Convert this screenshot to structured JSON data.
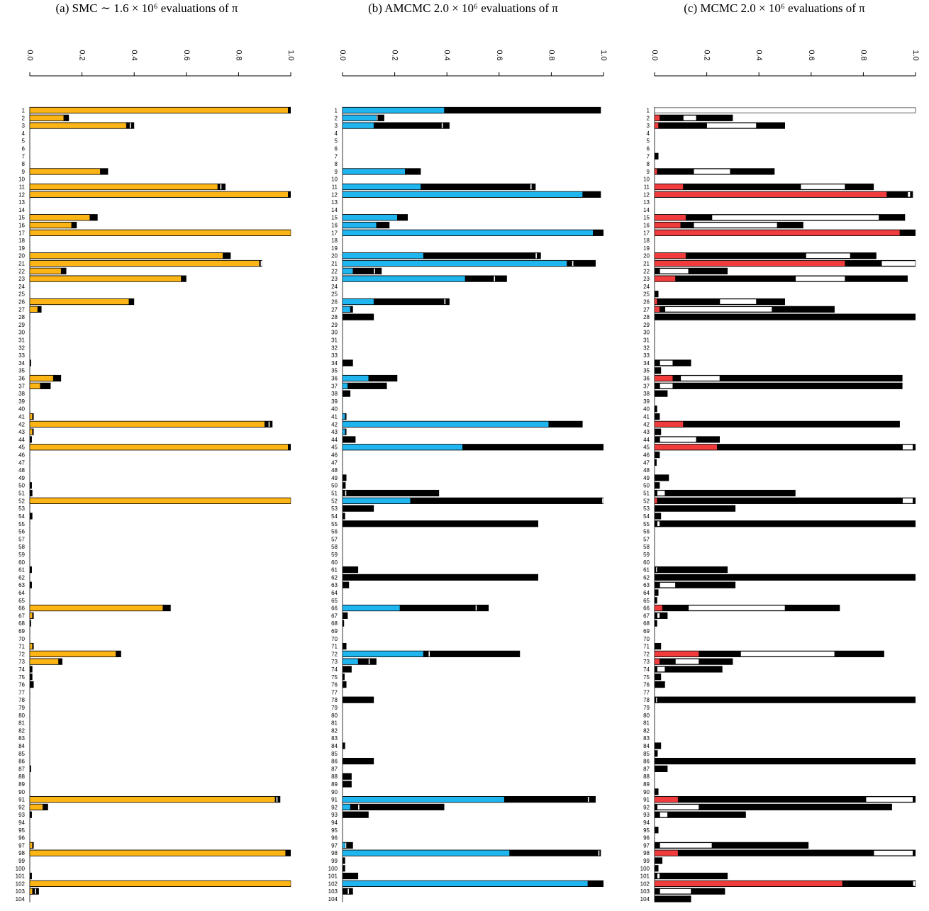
{
  "chart_data": [
    {
      "type": "bar",
      "title": "(a) SMC ∼ 1.6 × 10⁶ evaluations of π",
      "orientation": "horizontal",
      "xlim": [
        0,
        1
      ],
      "ticks": [
        "0.0",
        "0.2",
        "0.4",
        "0.6",
        "0.8",
        "1.0"
      ],
      "rows": [
        1,
        2,
        3,
        4,
        5,
        6,
        7,
        8,
        9,
        10,
        11,
        12,
        13,
        14,
        15,
        16,
        17,
        18,
        19,
        20,
        21,
        22,
        23,
        24,
        25,
        26,
        27,
        28,
        29,
        30,
        31,
        32,
        33,
        34,
        35,
        36,
        37,
        38,
        39,
        40,
        41,
        42,
        43,
        44,
        45,
        46,
        47,
        48,
        49,
        50,
        51,
        52,
        53,
        54,
        55,
        56,
        57,
        58,
        59,
        60,
        61,
        62,
        63,
        64,
        65,
        66,
        67,
        68,
        69,
        70,
        71,
        72,
        73,
        74,
        75,
        76,
        77,
        78,
        79,
        80,
        81,
        82,
        83,
        84,
        85,
        86,
        87,
        88,
        89,
        90,
        91,
        92,
        93,
        94,
        95,
        96,
        97,
        98,
        99,
        100,
        101,
        102,
        103,
        104
      ],
      "fill_color": "#FDB515",
      "fill_ids": [
        1,
        2,
        3,
        9,
        11,
        12,
        15,
        16,
        17,
        20,
        21,
        22,
        23,
        26,
        27,
        36,
        37,
        41,
        42,
        43,
        45,
        52,
        66,
        67,
        71,
        72,
        73,
        91,
        92,
        97,
        98,
        102,
        103
      ],
      "fill_vals": [
        0.99,
        0.13,
        0.37,
        0.27,
        0.72,
        0.99,
        0.23,
        0.16,
        1.0,
        0.74,
        0.88,
        0.12,
        0.58,
        0.38,
        0.03,
        0.09,
        0.04,
        0.01,
        0.9,
        0.01,
        0.99,
        1.0,
        0.51,
        0.01,
        0.01,
        0.33,
        0.11,
        0.94,
        0.05,
        0.01,
        0.98,
        1.0,
        0.01
      ],
      "total_ids": [
        1,
        2,
        3,
        9,
        11,
        12,
        15,
        16,
        17,
        20,
        21,
        22,
        23,
        26,
        27,
        34,
        36,
        37,
        41,
        42,
        43,
        44,
        45,
        50,
        51,
        52,
        54,
        61,
        63,
        66,
        67,
        68,
        71,
        72,
        73,
        74,
        75,
        76,
        87,
        91,
        92,
        93,
        97,
        98,
        101,
        102,
        103
      ],
      "total_vals": [
        1.0,
        0.15,
        0.4,
        0.3,
        0.75,
        1.0,
        0.26,
        0.18,
        1.0,
        0.77,
        0.89,
        0.14,
        0.6,
        0.4,
        0.045,
        0.005,
        0.12,
        0.08,
        0.015,
        0.93,
        0.015,
        0.008,
        1.0,
        0.008,
        0.01,
        1.0,
        0.01,
        0.008,
        0.008,
        0.54,
        0.015,
        0.005,
        0.015,
        0.35,
        0.125,
        0.01,
        0.01,
        0.015,
        0.005,
        0.96,
        0.07,
        0.008,
        0.015,
        1.0,
        0.008,
        1.0,
        0.035
      ],
      "white_ids": [
        3,
        11,
        17,
        21,
        42,
        91,
        103
      ],
      "white_vals": [
        0.383,
        0.73,
        0.999,
        0.885,
        0.915,
        0.945,
        0.02
      ]
    },
    {
      "type": "bar",
      "title": "(b) AMCMC 2.0 × 10⁶ evaluations of π",
      "orientation": "horizontal",
      "xlim": [
        0,
        1
      ],
      "ticks": [
        "0.0",
        "0.2",
        "0.4",
        "0.6",
        "0.8",
        "1.0"
      ],
      "rows": [
        1,
        2,
        3,
        4,
        5,
        6,
        7,
        8,
        9,
        10,
        11,
        12,
        13,
        14,
        15,
        16,
        17,
        18,
        19,
        20,
        21,
        22,
        23,
        24,
        25,
        26,
        27,
        28,
        29,
        30,
        31,
        32,
        33,
        34,
        35,
        36,
        37,
        38,
        39,
        40,
        41,
        42,
        43,
        44,
        45,
        46,
        47,
        48,
        49,
        50,
        51,
        52,
        53,
        54,
        55,
        56,
        57,
        58,
        59,
        60,
        61,
        62,
        63,
        64,
        65,
        66,
        67,
        68,
        69,
        70,
        71,
        72,
        73,
        74,
        75,
        76,
        77,
        78,
        79,
        80,
        81,
        82,
        83,
        84,
        85,
        86,
        87,
        88,
        89,
        90,
        91,
        92,
        93,
        94,
        95,
        96,
        97,
        98,
        99,
        100,
        101,
        102,
        103,
        104
      ],
      "fill_color": "#1FB6F0",
      "fill_ids": [
        1,
        2,
        3,
        9,
        11,
        12,
        15,
        16,
        17,
        20,
        21,
        22,
        23,
        26,
        27,
        36,
        37,
        41,
        42,
        43,
        45,
        52,
        66,
        72,
        73,
        91,
        92,
        97,
        98,
        102
      ],
      "fill_vals": [
        0.39,
        0.13,
        0.12,
        0.24,
        0.3,
        0.92,
        0.21,
        0.13,
        0.96,
        0.31,
        0.86,
        0.04,
        0.47,
        0.12,
        0.03,
        0.1,
        0.02,
        0.01,
        0.79,
        0.01,
        0.46,
        0.26,
        0.22,
        0.31,
        0.06,
        0.62,
        0.03,
        0.01,
        0.64,
        0.94
      ],
      "total_ids": [
        1,
        2,
        3,
        9,
        11,
        12,
        15,
        16,
        17,
        20,
        21,
        22,
        23,
        26,
        27,
        28,
        34,
        36,
        37,
        38,
        41,
        42,
        43,
        44,
        45,
        49,
        50,
        51,
        52,
        53,
        54,
        55,
        61,
        62,
        63,
        66,
        67,
        68,
        71,
        72,
        73,
        74,
        75,
        76,
        78,
        84,
        86,
        88,
        89,
        91,
        92,
        93,
        97,
        98,
        99,
        100,
        101,
        102,
        103
      ],
      "total_vals": [
        0.99,
        0.16,
        0.41,
        0.3,
        0.74,
        0.99,
        0.25,
        0.18,
        1.0,
        0.76,
        0.97,
        0.15,
        0.63,
        0.41,
        0.04,
        0.12,
        0.04,
        0.21,
        0.17,
        0.03,
        0.015,
        0.92,
        0.015,
        0.05,
        1.0,
        0.015,
        0.012,
        0.37,
        1.0,
        0.12,
        0.01,
        0.75,
        0.06,
        0.75,
        0.025,
        0.56,
        0.02,
        0.006,
        0.015,
        0.68,
        0.13,
        0.035,
        0.008,
        0.015,
        0.12,
        0.01,
        0.12,
        0.035,
        0.035,
        0.97,
        0.39,
        0.1,
        0.04,
        0.99,
        0.01,
        0.01,
        0.06,
        1.0,
        0.04
      ],
      "white_ids": [
        2,
        3,
        11,
        20,
        21,
        22,
        23,
        26,
        51,
        52,
        66,
        72,
        73,
        91,
        92,
        97,
        98,
        103
      ],
      "white_vals": [
        0.13,
        0.38,
        0.72,
        0.74,
        0.88,
        0.12,
        0.58,
        0.39,
        0.01,
        0.995,
        0.51,
        0.33,
        0.1,
        0.94,
        0.06,
        0.01,
        0.98,
        0.02
      ]
    },
    {
      "type": "bar",
      "title": "(c) MCMC 2.0 × 10⁶ evaluations of π",
      "orientation": "horizontal",
      "xlim": [
        0,
        1
      ],
      "ticks": [
        "0.0",
        "0.2",
        "0.4",
        "0.6",
        "0.8",
        "1.0"
      ],
      "rows": [
        1,
        2,
        3,
        4,
        5,
        6,
        7,
        8,
        9,
        10,
        11,
        12,
        13,
        14,
        15,
        16,
        17,
        18,
        19,
        20,
        21,
        22,
        23,
        24,
        25,
        26,
        27,
        28,
        29,
        30,
        31,
        32,
        33,
        34,
        35,
        36,
        37,
        38,
        39,
        40,
        41,
        42,
        43,
        44,
        45,
        46,
        47,
        48,
        49,
        50,
        51,
        52,
        53,
        54,
        55,
        56,
        57,
        58,
        59,
        60,
        61,
        62,
        63,
        64,
        65,
        66,
        67,
        68,
        69,
        70,
        71,
        72,
        73,
        74,
        75,
        76,
        77,
        78,
        79,
        80,
        81,
        82,
        83,
        84,
        85,
        86,
        87,
        88,
        89,
        90,
        91,
        92,
        93,
        94,
        95,
        96,
        97,
        98,
        99,
        100,
        101,
        102,
        103,
        104
      ],
      "fill_color": "#F03C3C",
      "fill_ids": [
        2,
        3,
        9,
        11,
        12,
        15,
        16,
        17,
        20,
        21,
        23,
        26,
        27,
        36,
        42,
        45,
        52,
        66,
        72,
        73,
        91,
        98,
        102
      ],
      "fill_vals": [
        0.02,
        0.015,
        0.01,
        0.11,
        0.89,
        0.12,
        0.1,
        0.94,
        0.12,
        0.73,
        0.08,
        0.01,
        0.02,
        0.07,
        0.11,
        0.24,
        0.01,
        0.03,
        0.17,
        0.02,
        0.09,
        0.09,
        0.72
      ],
      "total_ids": [
        2,
        3,
        7,
        9,
        11,
        12,
        15,
        16,
        17,
        20,
        21,
        22,
        23,
        25,
        26,
        27,
        28,
        34,
        35,
        36,
        37,
        38,
        40,
        41,
        42,
        43,
        44,
        45,
        46,
        47,
        49,
        50,
        51,
        52,
        53,
        54,
        55,
        61,
        62,
        63,
        64,
        65,
        66,
        67,
        68,
        71,
        72,
        73,
        74,
        75,
        76,
        78,
        84,
        85,
        86,
        87,
        90,
        91,
        92,
        93,
        95,
        97,
        98,
        99,
        100,
        101,
        102,
        103,
        104
      ],
      "total_vals": [
        0.3,
        0.5,
        0.015,
        0.46,
        0.84,
        0.99,
        0.96,
        0.57,
        1.0,
        0.85,
        1.0,
        0.28,
        0.97,
        0.015,
        0.5,
        0.69,
        1.0,
        0.14,
        0.025,
        0.95,
        0.95,
        0.05,
        0.01,
        0.02,
        0.94,
        0.025,
        0.25,
        1.0,
        0.02,
        0.008,
        0.055,
        0.02,
        0.54,
        1.0,
        0.31,
        0.025,
        1.0,
        0.28,
        1.0,
        0.31,
        0.015,
        0.01,
        0.71,
        0.05,
        0.01,
        0.025,
        0.88,
        0.3,
        0.26,
        0.025,
        0.04,
        1.0,
        0.025,
        0.012,
        1.0,
        0.05,
        0.015,
        1.0,
        0.91,
        0.35,
        0.015,
        0.59,
        1.0,
        0.03,
        0.015,
        0.28,
        1.0,
        0.27,
        0.14
      ],
      "white_ids": [
        1,
        2,
        3,
        9,
        11,
        12,
        15,
        16,
        20,
        21,
        22,
        23,
        26,
        27,
        34,
        36,
        37,
        44,
        45,
        51,
        52,
        55,
        61,
        63,
        66,
        67,
        72,
        73,
        74,
        78,
        91,
        92,
        93,
        97,
        98,
        101,
        102,
        103
      ],
      "white_ranges": [
        [
          0,
          1.0
        ],
        [
          0.11,
          0.16
        ],
        [
          0.2,
          0.39
        ],
        [
          0.15,
          0.29
        ],
        [
          0.56,
          0.73
        ],
        [
          0.97,
          0.98
        ],
        [
          0.22,
          0.86
        ],
        [
          0.15,
          0.47
        ],
        [
          0.58,
          0.75
        ],
        [
          0.87,
          1.0
        ],
        [
          0.02,
          0.13
        ],
        [
          0.54,
          0.73
        ],
        [
          0.25,
          0.39
        ],
        [
          0.04,
          0.45
        ],
        [
          0.02,
          0.07
        ],
        [
          0.1,
          0.25
        ],
        [
          0.02,
          0.07
        ],
        [
          0.02,
          0.16
        ],
        [
          0.95,
          0.99
        ],
        [
          0.01,
          0.04
        ],
        [
          0.95,
          0.99
        ],
        [
          0.01,
          0.02
        ],
        [
          0.005,
          0.01
        ],
        [
          0.02,
          0.08
        ],
        [
          0.13,
          0.5
        ],
        [
          0.01,
          0.02
        ],
        [
          0.33,
          0.69
        ],
        [
          0.08,
          0.17
        ],
        [
          0.01,
          0.04
        ],
        [
          0.005,
          0.01
        ],
        [
          0.81,
          0.99
        ],
        [
          0.01,
          0.17
        ],
        [
          0.02,
          0.05
        ],
        [
          0.02,
          0.22
        ],
        [
          0.84,
          0.99
        ],
        [
          0.01,
          0.02
        ],
        [
          0.99,
          1.0
        ],
        [
          0.02,
          0.14
        ]
      ]
    }
  ]
}
